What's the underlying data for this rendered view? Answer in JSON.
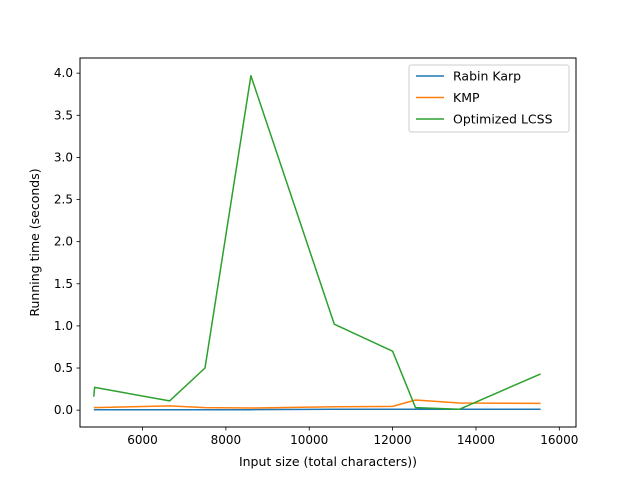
{
  "chart_data": {
    "type": "line",
    "xlabel": "Input size (total characters))",
    "ylabel": "Running time (seconds)",
    "xlim": [
      4500,
      16400
    ],
    "ylim": [
      -0.2,
      4.18
    ],
    "xticks": [
      6000,
      8000,
      10000,
      12000,
      14000,
      16000
    ],
    "xtick_labels": [
      "6000",
      "8000",
      "10000",
      "12000",
      "14000",
      "16000"
    ],
    "yticks": [
      0.0,
      0.5,
      1.0,
      1.5,
      2.0,
      2.5,
      3.0,
      3.5,
      4.0
    ],
    "ytick_labels": [
      "0.0",
      "0.5",
      "1.0",
      "1.5",
      "2.0",
      "2.5",
      "3.0",
      "3.5",
      "4.0"
    ],
    "grid": false,
    "legend_position": "top-right",
    "series": [
      {
        "name": "Rabin Karp",
        "color": "#1f77b4",
        "x": [
          4830,
          4850,
          6650,
          7500,
          8600,
          10600,
          12000,
          12550,
          13600,
          15550
        ],
        "y": [
          0.005,
          0.005,
          0.005,
          0.005,
          0.005,
          0.01,
          0.01,
          0.01,
          0.01,
          0.01
        ]
      },
      {
        "name": "KMP",
        "color": "#ff7f0e",
        "x": [
          4830,
          4850,
          6650,
          7500,
          8600,
          10600,
          12000,
          12550,
          13600,
          15550
        ],
        "y": [
          0.03,
          0.03,
          0.05,
          0.03,
          0.025,
          0.04,
          0.045,
          0.12,
          0.085,
          0.08
        ]
      },
      {
        "name": "Optimized LCSS",
        "color": "#2ca02c",
        "x": [
          4830,
          4850,
          6650,
          7500,
          8600,
          10600,
          12000,
          12550,
          13600,
          15550
        ],
        "y": [
          0.16,
          0.27,
          0.11,
          0.5,
          3.97,
          1.02,
          0.7,
          0.03,
          0.01,
          0.43
        ]
      }
    ]
  }
}
